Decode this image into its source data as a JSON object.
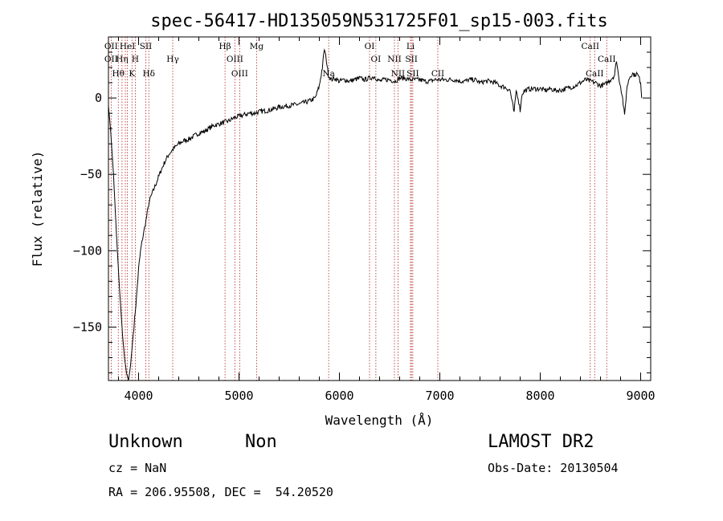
{
  "chart_data": {
    "type": "line",
    "title": "spec-56417-HD135059N531725F01_sp15-003.fits",
    "xlabel": "Wavelength (Å)",
    "ylabel": "Flux (relative)",
    "xlim": [
      3700,
      9100
    ],
    "ylim": [
      -185,
      40
    ],
    "xticks": [
      4000,
      5000,
      6000,
      7000,
      8000,
      9000
    ],
    "yticks": [
      0,
      -50,
      -100,
      -150
    ],
    "xtick_labels": [
      "4000",
      "5000",
      "6000",
      "7000",
      "8000",
      "9000"
    ],
    "ytick_labels": [
      "0",
      "−50",
      "−100",
      "−150"
    ],
    "grid": false,
    "series": [
      {
        "points": [
          [
            3700,
            -5
          ],
          [
            3720,
            -20
          ],
          [
            3750,
            -50
          ],
          [
            3780,
            -90
          ],
          [
            3810,
            -125
          ],
          [
            3840,
            -155
          ],
          [
            3860,
            -170
          ],
          [
            3880,
            -180
          ],
          [
            3900,
            -185
          ],
          [
            3920,
            -175
          ],
          [
            3940,
            -160
          ],
          [
            3960,
            -145
          ],
          [
            3980,
            -130
          ],
          [
            4000,
            -112
          ],
          [
            4020,
            -100
          ],
          [
            4040,
            -92
          ],
          [
            4060,
            -85
          ],
          [
            4080,
            -78
          ],
          [
            4100,
            -70
          ],
          [
            4120,
            -65
          ],
          [
            4150,
            -60
          ],
          [
            4180,
            -55
          ],
          [
            4220,
            -48
          ],
          [
            4260,
            -42
          ],
          [
            4300,
            -37
          ],
          [
            4350,
            -33
          ],
          [
            4400,
            -30
          ],
          [
            4450,
            -28
          ],
          [
            4500,
            -27
          ],
          [
            4550,
            -25
          ],
          [
            4600,
            -23
          ],
          [
            4650,
            -22
          ],
          [
            4700,
            -20
          ],
          [
            4750,
            -18
          ],
          [
            4800,
            -17
          ],
          [
            4850,
            -16
          ],
          [
            4900,
            -15
          ],
          [
            4950,
            -13
          ],
          [
            5000,
            -12
          ],
          [
            5050,
            -11
          ],
          [
            5100,
            -10
          ],
          [
            5150,
            -10
          ],
          [
            5200,
            -9
          ],
          [
            5300,
            -8
          ],
          [
            5400,
            -6
          ],
          [
            5500,
            -5
          ],
          [
            5600,
            -4
          ],
          [
            5700,
            -2
          ],
          [
            5760,
            0
          ],
          [
            5800,
            8
          ],
          [
            5830,
            20
          ],
          [
            5850,
            32
          ],
          [
            5870,
            25
          ],
          [
            5890,
            15
          ],
          [
            5920,
            12
          ],
          [
            5950,
            13
          ],
          [
            6000,
            11
          ],
          [
            6050,
            12
          ],
          [
            6100,
            11
          ],
          [
            6150,
            12
          ],
          [
            6200,
            13
          ],
          [
            6250,
            12
          ],
          [
            6300,
            13
          ],
          [
            6350,
            14
          ],
          [
            6380,
            12
          ],
          [
            6400,
            11
          ],
          [
            6450,
            12
          ],
          [
            6500,
            12
          ],
          [
            6550,
            11
          ],
          [
            6600,
            13
          ],
          [
            6650,
            13
          ],
          [
            6700,
            12
          ],
          [
            6750,
            12
          ],
          [
            6800,
            12
          ],
          [
            6850,
            11
          ],
          [
            6900,
            11
          ],
          [
            6950,
            12
          ],
          [
            7000,
            12
          ],
          [
            7050,
            12
          ],
          [
            7100,
            12
          ],
          [
            7150,
            12
          ],
          [
            7200,
            11
          ],
          [
            7250,
            11
          ],
          [
            7300,
            12
          ],
          [
            7350,
            12
          ],
          [
            7400,
            10
          ],
          [
            7450,
            11
          ],
          [
            7500,
            11
          ],
          [
            7550,
            10
          ],
          [
            7600,
            8
          ],
          [
            7650,
            7
          ],
          [
            7700,
            5
          ],
          [
            7740,
            -10
          ],
          [
            7760,
            5
          ],
          [
            7780,
            0
          ],
          [
            7800,
            -8
          ],
          [
            7820,
            3
          ],
          [
            7850,
            5
          ],
          [
            7900,
            6
          ],
          [
            7950,
            6
          ],
          [
            8000,
            6
          ],
          [
            8050,
            5
          ],
          [
            8100,
            6
          ],
          [
            8150,
            5
          ],
          [
            8200,
            5
          ],
          [
            8250,
            6
          ],
          [
            8300,
            7
          ],
          [
            8350,
            8
          ],
          [
            8400,
            10
          ],
          [
            8450,
            12
          ],
          [
            8500,
            11
          ],
          [
            8550,
            10
          ],
          [
            8600,
            8
          ],
          [
            8650,
            9
          ],
          [
            8700,
            12
          ],
          [
            8740,
            15
          ],
          [
            8760,
            25
          ],
          [
            8780,
            14
          ],
          [
            8800,
            8
          ],
          [
            8820,
            0
          ],
          [
            8840,
            -12
          ],
          [
            8860,
            5
          ],
          [
            8880,
            12
          ],
          [
            8900,
            15
          ],
          [
            8920,
            16
          ],
          [
            8940,
            15
          ],
          [
            8960,
            16
          ],
          [
            8980,
            14
          ],
          [
            9000,
            10
          ],
          [
            9010,
            0
          ]
        ]
      }
    ],
    "annotations": [
      {
        "label": "OII",
        "x": 3727,
        "row": 0
      },
      {
        "label": "HeI",
        "x": 3889,
        "row": 0
      },
      {
        "label": "SII",
        "x": 4072,
        "row": 0
      },
      {
        "label": "Hβ",
        "x": 4861,
        "row": 0
      },
      {
        "label": "Mg",
        "x": 5175,
        "row": 0
      },
      {
        "label": "OI",
        "x": 6300,
        "row": 0
      },
      {
        "label": "Li",
        "x": 6708,
        "row": 0
      },
      {
        "label": "CaII",
        "x": 8498,
        "row": 0
      },
      {
        "label": "OII",
        "x": 3727,
        "row": 1
      },
      {
        "label": "Hη",
        "x": 3835,
        "row": 1
      },
      {
        "label": "H",
        "x": 3968,
        "row": 1
      },
      {
        "label": "Hγ",
        "x": 4340,
        "row": 1
      },
      {
        "label": "OIII",
        "x": 4959,
        "row": 1
      },
      {
        "label": "OI",
        "x": 6363,
        "row": 1
      },
      {
        "label": "NII",
        "x": 6548,
        "row": 1
      },
      {
        "label": "SII",
        "x": 6717,
        "row": 1
      },
      {
        "label": "CaII",
        "x": 8662,
        "row": 1
      },
      {
        "label": "Hθ",
        "x": 3798,
        "row": 2
      },
      {
        "label": "K",
        "x": 3934,
        "row": 2
      },
      {
        "label": "Hδ",
        "x": 4102,
        "row": 2
      },
      {
        "label": "OIII",
        "x": 5007,
        "row": 2
      },
      {
        "label": "Na",
        "x": 5893,
        "row": 2
      },
      {
        "label": "NII",
        "x": 6583,
        "row": 2
      },
      {
        "label": "SII",
        "x": 6731,
        "row": 2
      },
      {
        "label": "CII",
        "x": 6980,
        "row": 2
      },
      {
        "label": "CaII",
        "x": 8542,
        "row": 2
      }
    ],
    "line_positions": [
      3727,
      3798,
      3835,
      3868,
      3889,
      3934,
      3968,
      4072,
      4102,
      4340,
      4861,
      4959,
      5007,
      5175,
      5893,
      6300,
      6363,
      6548,
      6583,
      6708,
      6717,
      6731,
      6980,
      8498,
      8542,
      8662
    ]
  },
  "info": {
    "object_type": "Unknown",
    "subclass": "Non",
    "survey": "LAMOST DR2",
    "cz": "cz = NaN",
    "obs_date": "Obs-Date: 20130504",
    "coords": "RA = 206.95508, DEC =  54.20520"
  },
  "colors": {
    "spectrum": "#000000",
    "line_markers": "#b22222",
    "axes": "#000000"
  }
}
